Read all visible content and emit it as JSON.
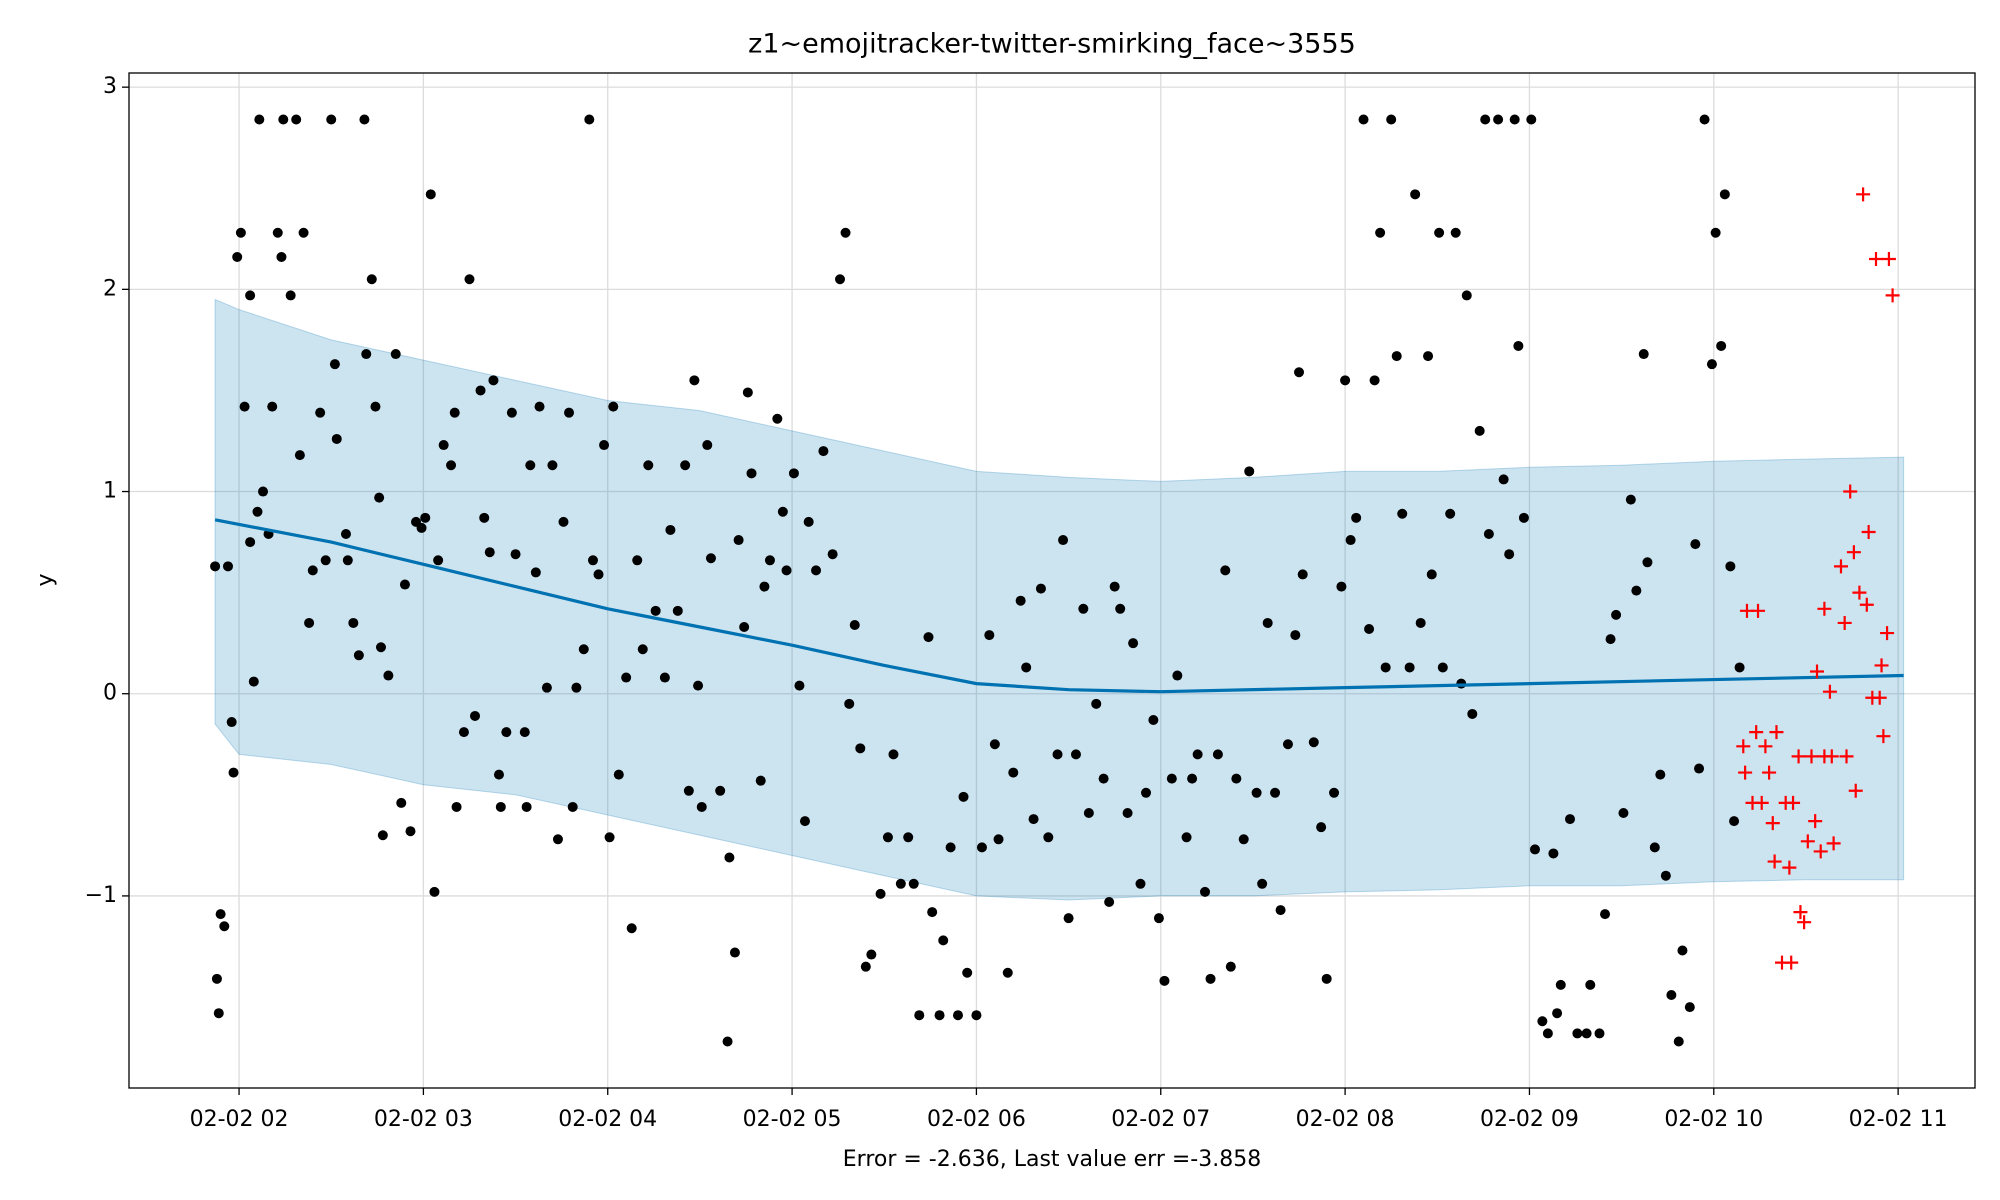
{
  "chart_data": {
    "type": "line",
    "title": "z1~emojitracker-twitter-smirking_face~3555",
    "x_label": "Error = -2.636, Last value err =-3.858",
    "y_label": "y",
    "xlim": [
      1.403,
      11.417
    ],
    "ylim": [
      -1.95,
      3.07
    ],
    "xticks": [
      {
        "value": 2,
        "label": "02-02 02"
      },
      {
        "value": 3,
        "label": "02-02 03"
      },
      {
        "value": 4,
        "label": "02-02 04"
      },
      {
        "value": 5,
        "label": "02-02 05"
      },
      {
        "value": 6,
        "label": "02-02 06"
      },
      {
        "value": 7,
        "label": "02-02 07"
      },
      {
        "value": 8,
        "label": "02-02 08"
      },
      {
        "value": 9,
        "label": "02-02 09"
      },
      {
        "value": 10,
        "label": "02-02 10"
      },
      {
        "value": 11,
        "label": "02-02 11"
      }
    ],
    "yticks": [
      {
        "value": -1,
        "label": "−1"
      },
      0,
      1,
      2,
      3
    ],
    "grid": true,
    "interval": {
      "color": "#0072B2",
      "x": [
        1.87,
        2,
        2.5,
        3,
        3.5,
        4,
        4.5,
        5,
        5.5,
        6,
        6.5,
        7,
        7.5,
        8,
        8.5,
        9,
        9.5,
        10,
        10.5,
        11.03
      ],
      "upper": [
        1.95,
        1.9,
        1.75,
        1.65,
        1.55,
        1.45,
        1.4,
        1.3,
        1.2,
        1.1,
        1.07,
        1.05,
        1.07,
        1.1,
        1.1,
        1.12,
        1.13,
        1.15,
        1.16,
        1.17
      ],
      "lower": [
        -0.15,
        -0.3,
        -0.35,
        -0.45,
        -0.5,
        -0.6,
        -0.7,
        -0.8,
        -0.9,
        -1.0,
        -1.02,
        -1.0,
        -1.0,
        -0.98,
        -0.97,
        -0.95,
        -0.95,
        -0.93,
        -0.92,
        -0.92
      ]
    },
    "forecast": {
      "color": "#0072B2",
      "x": [
        1.87,
        2.5,
        3,
        3.5,
        4,
        4.5,
        5,
        5.5,
        6,
        6.5,
        7,
        8,
        9,
        10,
        11.03
      ],
      "y": [
        0.86,
        0.75,
        0.64,
        0.53,
        0.42,
        0.33,
        0.24,
        0.14,
        0.05,
        0.02,
        0.01,
        0.03,
        0.05,
        0.07,
        0.09
      ]
    },
    "points": {
      "color": "#000000",
      "x": [
        1.87,
        1.94,
        1.88,
        1.89,
        1.9,
        1.92,
        1.96,
        1.97,
        1.99,
        2.01,
        2.03,
        2.06,
        2.06,
        2.08,
        2.1,
        2.11,
        2.13,
        2.16,
        2.18,
        2.21,
        2.23,
        2.24,
        2.28,
        2.31,
        2.33,
        2.35,
        2.38,
        2.4,
        2.44,
        2.47,
        2.5,
        2.52,
        2.53,
        2.58,
        2.59,
        2.62,
        2.65,
        2.68,
        2.69,
        2.72,
        2.74,
        2.76,
        2.77,
        2.78,
        2.81,
        2.85,
        2.88,
        2.9,
        2.93,
        2.96,
        2.99,
        3.01,
        3.04,
        3.06,
        3.08,
        3.11,
        3.15,
        3.17,
        3.18,
        3.22,
        3.25,
        3.28,
        3.31,
        3.33,
        3.36,
        3.38,
        3.41,
        3.42,
        3.45,
        3.48,
        3.5,
        3.55,
        3.56,
        3.58,
        3.61,
        3.63,
        3.67,
        3.7,
        3.73,
        3.76,
        3.79,
        3.81,
        3.83,
        3.87,
        3.9,
        3.92,
        3.95,
        3.98,
        4.01,
        4.03,
        4.06,
        4.1,
        4.13,
        4.16,
        4.19,
        4.22,
        4.26,
        4.31,
        4.34,
        4.38,
        4.42,
        4.44,
        4.47,
        4.49,
        4.51,
        4.54,
        4.56,
        4.61,
        4.65,
        4.66,
        4.69,
        4.71,
        4.74,
        4.76,
        4.78,
        4.83,
        4.85,
        4.88,
        4.92,
        4.95,
        4.97,
        5.01,
        5.04,
        5.07,
        5.09,
        5.13,
        5.17,
        5.22,
        5.26,
        5.29,
        5.31,
        5.34,
        5.37,
        5.4,
        5.43,
        5.48,
        5.52,
        5.55,
        5.59,
        5.63,
        5.66,
        5.69,
        5.74,
        5.76,
        5.8,
        5.82,
        5.86,
        5.9,
        5.93,
        5.95,
        6.0,
        6.03,
        6.07,
        6.1,
        6.12,
        6.17,
        6.2,
        6.24,
        6.27,
        6.31,
        6.35,
        6.39,
        6.44,
        6.47,
        6.5,
        6.54,
        6.58,
        6.61,
        6.65,
        6.69,
        6.72,
        6.75,
        6.78,
        6.82,
        6.85,
        6.89,
        6.92,
        6.96,
        6.99,
        7.02,
        7.06,
        7.09,
        7.14,
        7.17,
        7.2,
        7.24,
        7.27,
        7.31,
        7.35,
        7.38,
        7.41,
        7.45,
        7.48,
        7.52,
        7.55,
        7.58,
        7.62,
        7.65,
        7.69,
        7.73,
        7.75,
        7.77,
        7.83,
        7.87,
        7.9,
        7.94,
        7.98,
        8.0,
        8.03,
        8.06,
        8.1,
        8.13,
        8.16,
        8.19,
        8.22,
        8.25,
        8.28,
        8.31,
        8.35,
        8.38,
        8.41,
        8.45,
        8.47,
        8.51,
        8.53,
        8.57,
        8.6,
        8.63,
        8.66,
        8.69,
        8.73,
        8.76,
        8.78,
        8.83,
        8.86,
        8.89,
        8.92,
        8.94,
        8.97,
        9.01,
        9.03,
        9.07,
        9.1,
        9.13,
        9.15,
        9.17,
        9.22,
        9.26,
        9.31,
        9.33,
        9.38,
        9.41,
        9.44,
        9.47,
        9.51,
        9.55,
        9.58,
        9.62,
        9.64,
        9.68,
        9.71,
        9.74,
        9.77,
        9.81,
        9.83,
        9.87,
        9.9,
        9.92,
        9.95,
        9.99,
        10.01,
        10.04,
        10.06,
        10.09,
        10.11,
        10.14
      ],
      "y": [
        0.63,
        0.63,
        -1.41,
        -1.58,
        -1.09,
        -1.15,
        -0.14,
        -0.39,
        2.16,
        2.28,
        1.42,
        0.75,
        1.97,
        0.06,
        0.9,
        2.84,
        1.0,
        0.79,
        1.42,
        2.28,
        2.16,
        2.84,
        1.97,
        2.84,
        1.18,
        2.28,
        0.35,
        0.61,
        1.39,
        0.66,
        2.84,
        1.63,
        1.26,
        0.79,
        0.66,
        0.35,
        0.19,
        2.84,
        1.68,
        2.05,
        1.42,
        0.97,
        0.23,
        -0.7,
        0.09,
        1.68,
        -0.54,
        0.54,
        -0.68,
        0.85,
        0.82,
        0.87,
        2.47,
        -0.98,
        0.66,
        1.23,
        1.13,
        1.39,
        -0.56,
        -0.19,
        2.05,
        -0.11,
        1.5,
        0.87,
        0.7,
        1.55,
        -0.4,
        -0.56,
        -0.19,
        1.39,
        0.69,
        -0.19,
        -0.56,
        1.13,
        0.6,
        1.42,
        0.03,
        1.13,
        -0.72,
        0.85,
        1.39,
        -0.56,
        0.03,
        0.22,
        2.84,
        0.66,
        0.59,
        1.23,
        -0.71,
        1.42,
        -0.4,
        0.08,
        -1.16,
        0.66,
        0.22,
        1.13,
        0.41,
        0.08,
        0.81,
        0.41,
        1.13,
        -0.48,
        1.55,
        0.04,
        -0.56,
        1.23,
        0.67,
        -0.48,
        -1.72,
        -0.81,
        -1.28,
        0.76,
        0.33,
        1.49,
        1.09,
        -0.43,
        0.53,
        0.66,
        1.36,
        0.9,
        0.61,
        1.09,
        0.04,
        -0.63,
        0.85,
        0.61,
        1.2,
        0.69,
        2.05,
        2.28,
        -0.05,
        0.34,
        -0.27,
        -1.35,
        -1.29,
        -0.99,
        -0.71,
        -0.3,
        -0.94,
        -0.71,
        -0.94,
        -1.59,
        0.28,
        -1.08,
        -1.59,
        -1.22,
        -0.76,
        -1.59,
        -0.51,
        -1.38,
        -1.59,
        -0.76,
        0.29,
        -0.25,
        -0.72,
        -1.38,
        -0.39,
        0.46,
        0.13,
        -0.62,
        0.52,
        -0.71,
        -0.3,
        0.76,
        -1.11,
        -0.3,
        0.42,
        -0.59,
        -0.05,
        -0.42,
        -1.03,
        0.53,
        0.42,
        -0.59,
        0.25,
        -0.94,
        -0.49,
        -0.13,
        -1.11,
        -1.42,
        -0.42,
        0.09,
        -0.71,
        -0.42,
        -0.3,
        -0.98,
        -1.41,
        -0.3,
        0.61,
        -1.35,
        -0.42,
        -0.72,
        1.1,
        -0.49,
        -0.94,
        0.35,
        -0.49,
        -1.07,
        -0.25,
        0.29,
        1.59,
        0.59,
        -0.24,
        -0.66,
        -1.41,
        -0.49,
        0.53,
        1.55,
        0.76,
        0.87,
        2.84,
        0.32,
        1.55,
        2.28,
        0.13,
        2.84,
        1.67,
        0.89,
        0.13,
        2.47,
        0.35,
        1.67,
        0.59,
        2.28,
        0.13,
        0.89,
        2.28,
        0.05,
        1.97,
        -0.1,
        1.3,
        2.84,
        0.79,
        2.84,
        1.06,
        0.69,
        2.84,
        1.72,
        0.87,
        2.84,
        -0.77,
        -1.62,
        -1.68,
        -0.79,
        -1.58,
        -1.44,
        -0.62,
        -1.68,
        -1.68,
        -1.44,
        -1.68,
        -1.09,
        0.27,
        0.39,
        -0.59,
        0.96,
        0.51,
        1.68,
        0.65,
        -0.76,
        -0.4,
        -0.9,
        -1.49,
        -1.72,
        -1.27,
        -1.55,
        0.74,
        -0.37,
        2.84,
        1.63,
        2.28,
        1.72,
        2.47,
        0.63,
        -0.63,
        0.13
      ]
    },
    "test_points": {
      "color": "#ff0000",
      "x": [
        10.16,
        10.18,
        10.17,
        10.21,
        10.23,
        10.24,
        10.26,
        10.28,
        10.3,
        10.32,
        10.33,
        10.34,
        10.37,
        10.39,
        10.41,
        10.42,
        10.43,
        10.46,
        10.47,
        10.49,
        10.51,
        10.53,
        10.55,
        10.56,
        10.58,
        10.6,
        10.6,
        10.63,
        10.64,
        10.65,
        10.69,
        10.71,
        10.72,
        10.74,
        10.76,
        10.77,
        10.79,
        10.81,
        10.83,
        10.84,
        10.86,
        10.88,
        10.9,
        10.91,
        10.92,
        10.94,
        10.95,
        10.97
      ],
      "y": [
        -0.26,
        0.41,
        -0.39,
        -0.54,
        -0.19,
        0.41,
        -0.54,
        -0.26,
        -0.39,
        -0.64,
        -0.83,
        -0.19,
        -1.33,
        -0.54,
        -0.86,
        -1.33,
        -0.54,
        -0.31,
        -1.08,
        -1.13,
        -0.73,
        -0.31,
        -0.63,
        0.11,
        -0.78,
        -0.31,
        0.42,
        0.01,
        -0.31,
        -0.74,
        0.63,
        0.35,
        -0.31,
        1.0,
        0.7,
        -0.48,
        0.5,
        2.47,
        0.44,
        0.8,
        -0.02,
        2.15,
        -0.02,
        0.14,
        -0.21,
        0.3,
        2.15,
        1.97
      ]
    }
  }
}
